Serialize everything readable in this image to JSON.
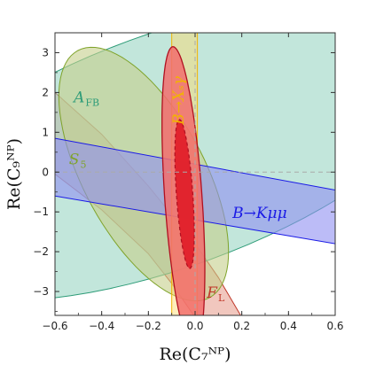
{
  "chart_data": {
    "type": "area",
    "xlabel": "Re(C₇ᴺᴾ)",
    "ylabel": "Re(C₉ᴺᴾ)",
    "xlim": [
      -0.6,
      0.6
    ],
    "ylim": [
      -3.6,
      3.5
    ],
    "x_ticks": [
      -0.6,
      -0.4,
      -0.2,
      0.0,
      0.2,
      0.4,
      0.6
    ],
    "y_ticks": [
      -3,
      -2,
      -1,
      0,
      1,
      2,
      3
    ],
    "x_tick_labels": [
      "−0.6",
      "−0.4",
      "−0.2",
      "0.0",
      "0.2",
      "0.4",
      "0.6"
    ],
    "y_tick_labels": [
      "−3",
      "−2",
      "−1",
      "0",
      "1",
      "2",
      "3"
    ],
    "reference_lines": {
      "x": 0,
      "y": 0
    },
    "colors": {
      "AFB": "#2e9c78",
      "S5": "#7fa32a",
      "FL": "#c0392b",
      "BKmumu": "#1a1ae6",
      "BXsgamma": "#f2b300",
      "combined": "#e0202a"
    },
    "regions": [
      {
        "name": "AFB",
        "label_main": "A",
        "label_sub": "FB",
        "shape": "ellipse",
        "center": [
          -0.11,
          0.55
        ],
        "semi_axes": [
          0.5,
          1.3
        ],
        "angle_deg": -70,
        "label_pos": [
          -0.52,
          1.75
        ]
      },
      {
        "name": "S5",
        "label_main": "S",
        "label_sub": "5",
        "shape": "ellipse",
        "center": [
          -0.22,
          -0.05
        ],
        "semi_axes": [
          0.6,
          0.26
        ],
        "angle_deg": -62,
        "label_pos": [
          -0.54,
          0.2
        ]
      },
      {
        "name": "FL",
        "label_main": "F",
        "label_sub": "L",
        "shape": "band",
        "upper_edge": [
          [
            -0.6,
            2.0
          ],
          [
            -0.4,
            0.95
          ],
          [
            -0.2,
            -0.35
          ],
          [
            0.0,
            -1.8
          ],
          [
            0.1,
            -2.65
          ],
          [
            0.2,
            -3.65
          ]
        ],
        "lower_edge": [
          [
            -0.6,
            -0.05
          ],
          [
            -0.4,
            -0.95
          ],
          [
            -0.2,
            -2.05
          ],
          [
            -0.1,
            -2.8
          ],
          [
            0.0,
            -3.65
          ]
        ],
        "label_pos": [
          0.05,
          -3.15
        ]
      },
      {
        "name": "BKmumu",
        "label_text": "B→Kμμ",
        "shape": "band",
        "upper_edge": [
          [
            -0.6,
            0.85
          ],
          [
            0.6,
            -0.45
          ]
        ],
        "lower_edge": [
          [
            -0.6,
            -0.6
          ],
          [
            0.6,
            -1.8
          ]
        ],
        "label_pos": [
          0.16,
          -1.15
        ]
      },
      {
        "name": "BXsgamma",
        "label_text": "B→Xₛγ",
        "shape": "vband",
        "x_range": [
          -0.1,
          0.01
        ],
        "label_pos": [
          -0.05,
          1.8
        ]
      },
      {
        "name": "combined",
        "shape": "ellipse",
        "center": [
          -0.05,
          -0.65
        ],
        "semi_axes": [
          0.65,
          0.08
        ],
        "angle_deg": -86,
        "inner_center": [
          -0.045,
          -0.55
        ],
        "inner_semi_axes": [
          0.32,
          0.035
        ],
        "inner_angle_deg": -86
      }
    ]
  }
}
